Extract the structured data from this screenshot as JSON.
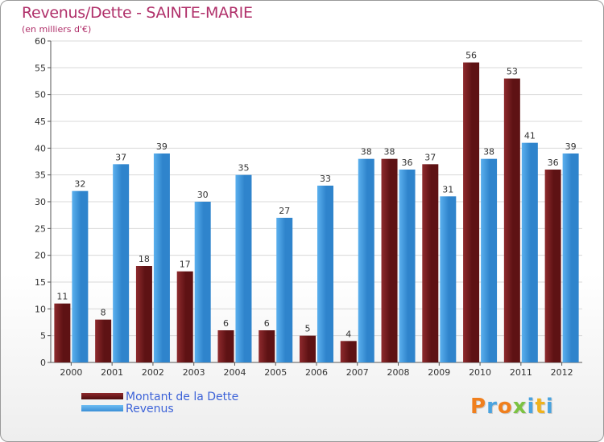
{
  "title": "Revenus/Dette - SAINTE-MARIE",
  "subtitle": "(en milliers d'€)",
  "logo": {
    "text": "Proxiti",
    "letter_colors": [
      "#f07f1d",
      "#4aa3df",
      "#f07f1d",
      "#7cc242",
      "#4aa3df",
      "#f0b21d",
      "#4aa3df"
    ]
  },
  "colors": {
    "debt": "#7a1f22",
    "revenue": "#4a9fe0",
    "axis": "#555555",
    "grid": "#d8d8d8"
  },
  "chart_data": {
    "type": "bar",
    "categories": [
      "2000",
      "2001",
      "2002",
      "2003",
      "2004",
      "2005",
      "2006",
      "2007",
      "2008",
      "2009",
      "2010",
      "2011",
      "2012"
    ],
    "series": [
      {
        "name": "Montant de la Dette",
        "values": [
          11,
          8,
          18,
          17,
          6,
          6,
          5,
          4,
          38,
          37,
          56,
          53,
          36
        ]
      },
      {
        "name": "Revenus",
        "values": [
          32,
          37,
          39,
          30,
          35,
          27,
          33,
          38,
          36,
          31,
          38,
          41,
          39
        ]
      }
    ],
    "ylim": [
      0,
      60
    ],
    "yticks": [
      0,
      5,
      10,
      15,
      20,
      25,
      30,
      35,
      40,
      45,
      50,
      55,
      60
    ],
    "grid": true,
    "legend": "bottom-left"
  }
}
